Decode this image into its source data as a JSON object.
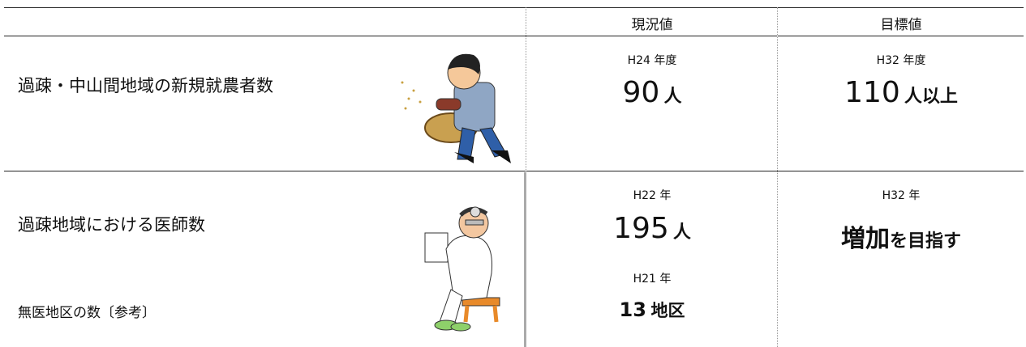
{
  "header": {
    "columns": [
      "現況値",
      "目標値"
    ]
  },
  "rows": [
    {
      "label": "過疎・中山間地域の新規就農者数",
      "current": {
        "period": "H24 年度",
        "value": 90,
        "unit": "人"
      },
      "target": {
        "period": "H32 年度",
        "value": 110,
        "unit": "人以上"
      }
    },
    {
      "label": "過疎地域における医師数",
      "current": {
        "period": "H22 年",
        "value": 195,
        "unit": "人"
      },
      "target": {
        "period": "H32 年",
        "emphasis": "増加",
        "text": "を目指す"
      },
      "sub": {
        "label": "無医地区の数〔参考〕",
        "period": "H21 年",
        "value": 13,
        "unit": "地区"
      }
    }
  ]
}
